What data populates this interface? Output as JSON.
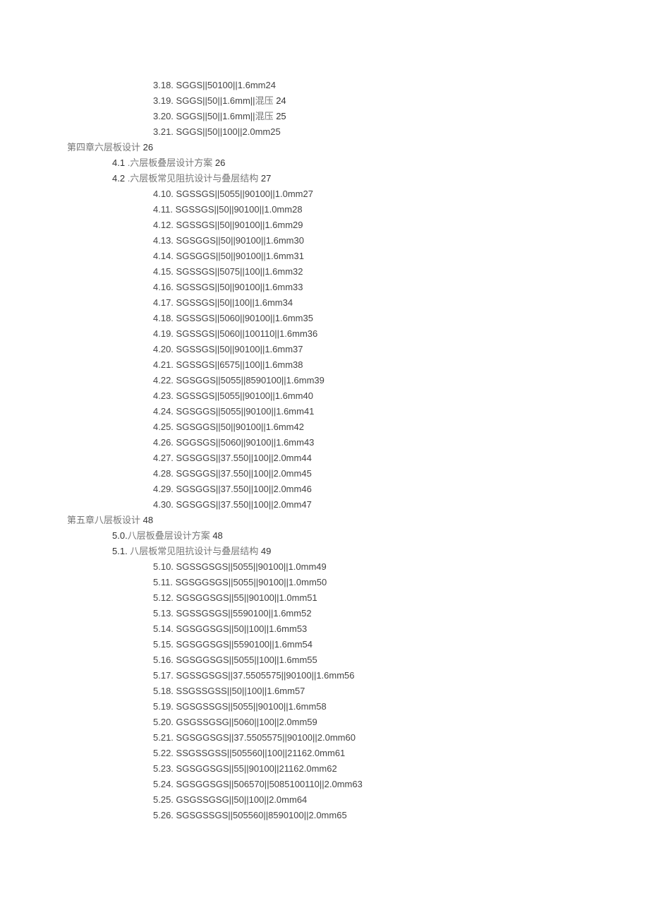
{
  "section3_items": [
    {
      "n": "3.18.",
      "t": "SGGS||50100||1.6mm24"
    },
    {
      "n": "3.19.",
      "t": "SGGS||50||1.6mm||",
      "cn": "混压",
      "t2": " 24"
    },
    {
      "n": "3.20.",
      "t": "SGGS||50||1.6mm||",
      "cn": "混压",
      "t2": " 25"
    },
    {
      "n": "3.21.",
      "t": "SGGS||50||100||2.0mm25"
    }
  ],
  "chapter4": {
    "title_cn": "第四章六层板设计",
    "title_num": " 26",
    "items2": [
      {
        "pre": "4.1",
        "cn": " .六层板叠层设计方案",
        "num": " 26"
      },
      {
        "pre": "4.2",
        "cn": " .六层板常见阻抗设计与叠层结构",
        "num": " 27"
      }
    ],
    "items3": [
      {
        "n": "4.10.",
        "t": "SGSSGS||5055||90100||1.0mm27"
      },
      {
        "n": "4.11.",
        "t": "SGSSGS||50||90100||1.0mm28"
      },
      {
        "n": "4.12.",
        "t": "SGSSGS||50||90100||1.6mm29"
      },
      {
        "n": "4.13.",
        "t": "SGSGGS||50||90100||1.6mm30"
      },
      {
        "n": "4.14.",
        "t": "SGSGGS||50||90100||1.6mm31"
      },
      {
        "n": "4.15.",
        "t": "SGSSGS||5075||100||1.6mm32"
      },
      {
        "n": "4.16.",
        "t": "SGSSGS||50||90100||1.6mm33"
      },
      {
        "n": "4.17.",
        "t": "SGSSGS||50||100||1.6mm34"
      },
      {
        "n": "4.18.",
        "t": "SGSSGS||5060||90100||1.6mm35"
      },
      {
        "n": "4.19.",
        "t": "SGSSGS||5060||100110||1.6mm36"
      },
      {
        "n": "4.20.",
        "t": "SGSSGS||50||90100||1.6mm37"
      },
      {
        "n": "4.21.",
        "t": "SGSSGS||6575||100||1.6mm38"
      },
      {
        "n": "4.22.",
        "t": "SGSGGS||5055||8590100||1.6mm39"
      },
      {
        "n": "4.23.",
        "t": "SGSSGS||5055||90100||1.6mm40"
      },
      {
        "n": "4.24.",
        "t": "SGSGGS||5055||90100||1.6mm41"
      },
      {
        "n": "4.25.",
        "t": "SGSGGS||50||90100||1.6mm42"
      },
      {
        "n": "4.26.",
        "t": "SGGSGS||5060||90100||1.6mm43"
      },
      {
        "n": "4.27.",
        "t": "SGSGGS||37.550||100||2.0mm44"
      },
      {
        "n": "4.28.",
        "t": "SGSGGS||37.550||100||2.0mm45"
      },
      {
        "n": "4.29.",
        "t": "SGSGGS||37.550||100||2.0mm46"
      },
      {
        "n": "4.30.",
        "t": "SGSGGS||37.550||100||2.0mm47"
      }
    ]
  },
  "chapter5": {
    "title_cn": "第五章八层板设计",
    "title_num": " 48",
    "items2": [
      {
        "pre": "5.0.",
        "cn": "八层板叠层设计方案",
        "num": " 48"
      },
      {
        "pre": "5.1.",
        "cn": "  八层板常见阻抗设计与叠层结构",
        "num": " 49"
      }
    ],
    "items3": [
      {
        "n": "5.10.",
        "t": "SGSSGSGS||5055||90100||1.0mm49"
      },
      {
        "n": "5.11.",
        "t": "SGSGGSGS||5055||90100||1.0mm50"
      },
      {
        "n": "5.12.",
        "t": "SGSGGSGS||55||90100||1.0mm51"
      },
      {
        "n": "5.13.",
        "t": "SGSSGSGS||5590100||1.6mm52"
      },
      {
        "n": "5.14.",
        "t": "SGSGGSGS||50||100||1.6mm53"
      },
      {
        "n": "5.15.",
        "t": "SGSGGSGS||5590100||1.6mm54"
      },
      {
        "n": "5.16.",
        "t": "SGSGGSGS||5055||100||1.6mm55"
      },
      {
        "n": "5.17.",
        "t": "SGSSGSGS||37.5505575||90100||1.6mm56"
      },
      {
        "n": "5.18.",
        "t": "SSGSSGSS||50||100||1.6mm57"
      },
      {
        "n": "5.19.",
        "t": "SGSGSSGS||5055||90100||1.6mm58"
      },
      {
        "n": "5.20.",
        "t": "GSGSSGSG||5060||100||2.0mm59"
      },
      {
        "n": "5.21.",
        "t": "SGSGGSGS||37.5505575||90100||2.0mm60"
      },
      {
        "n": "5.22.",
        "t": "SSGSSGSS||505560||100||21162.0mm61"
      },
      {
        "n": "5.23.",
        "t": "SGSGGSGS||55||90100||21162.0mm62"
      },
      {
        "n": "5.24.",
        "t": "SGSGGSGS||506570||5085100110||2.0mm63"
      },
      {
        "n": "5.25.",
        "t": "GSGSSGSG||50||100||2.0mm64"
      },
      {
        "n": "5.26.",
        "t": "SGSGSSGS||505560||8590100||2.0mm65"
      }
    ]
  }
}
